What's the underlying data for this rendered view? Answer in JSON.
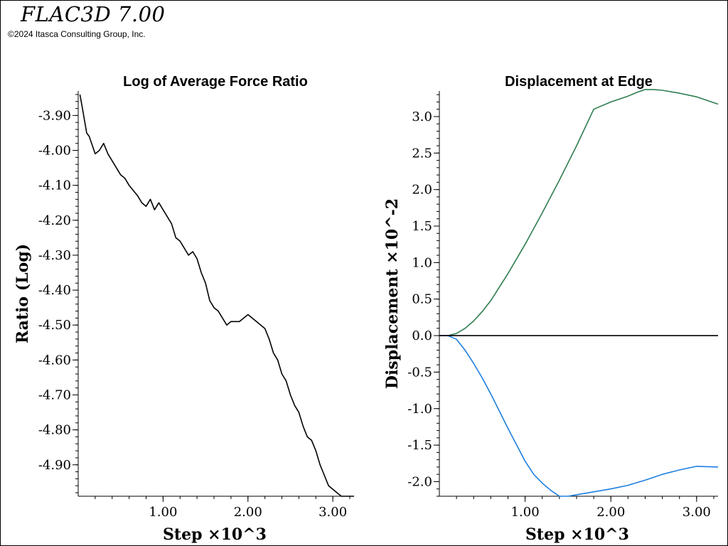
{
  "header": {
    "app_title": "FLAC3D 7.00",
    "copyright": "©2024 Itasca Consulting Group, Inc."
  },
  "chart_data": [
    {
      "type": "line",
      "title": "Log of Average Force Ratio",
      "xlabel": "Step ×10^3",
      "ylabel": "Ratio (Log)",
      "xlim": [
        0.0,
        3.25
      ],
      "ylim": [
        -4.99,
        -3.83
      ],
      "xticks": [
        1.0,
        2.0,
        3.0
      ],
      "xtick_labels": [
        "1.00",
        "2.00",
        "3.00"
      ],
      "yticks": [
        -3.9,
        -4.0,
        -4.1,
        -4.2,
        -4.3,
        -4.4,
        -4.5,
        -4.6,
        -4.7,
        -4.8,
        -4.9
      ],
      "ytick_labels": [
        "-3.90",
        "-4.00",
        "-4.10",
        "-4.20",
        "-4.30",
        "-4.40",
        "-4.50",
        "-4.60",
        "-4.70",
        "-4.80",
        "-4.90"
      ],
      "grid": false,
      "series": [
        {
          "color": "#000000",
          "x": [
            0.02,
            0.05,
            0.1,
            0.13,
            0.2,
            0.25,
            0.3,
            0.35,
            0.4,
            0.45,
            0.5,
            0.55,
            0.6,
            0.7,
            0.75,
            0.8,
            0.85,
            0.9,
            0.95,
            1.0,
            1.05,
            1.1,
            1.15,
            1.2,
            1.25,
            1.3,
            1.35,
            1.4,
            1.45,
            1.5,
            1.55,
            1.6,
            1.65,
            1.7,
            1.75,
            1.8,
            1.85,
            1.9,
            1.95,
            2.0,
            2.05,
            2.1,
            2.15,
            2.2,
            2.25,
            2.3,
            2.35,
            2.4,
            2.45,
            2.5,
            2.55,
            2.6,
            2.65,
            2.7,
            2.75,
            2.8,
            2.85,
            2.9,
            2.95,
            3.0,
            3.05,
            3.1,
            3.15,
            3.2,
            3.25
          ],
          "y": [
            -3.84,
            -3.88,
            -3.95,
            -3.96,
            -4.01,
            -4.0,
            -3.98,
            -4.01,
            -4.03,
            -4.05,
            -4.07,
            -4.08,
            -4.1,
            -4.13,
            -4.15,
            -4.16,
            -4.14,
            -4.17,
            -4.15,
            -4.17,
            -4.19,
            -4.21,
            -4.25,
            -4.26,
            -4.28,
            -4.3,
            -4.29,
            -4.31,
            -4.35,
            -4.38,
            -4.43,
            -4.45,
            -4.46,
            -4.48,
            -4.5,
            -4.49,
            -4.49,
            -4.49,
            -4.48,
            -4.47,
            -4.48,
            -4.49,
            -4.5,
            -4.51,
            -4.54,
            -4.58,
            -4.6,
            -4.64,
            -4.66,
            -4.7,
            -4.73,
            -4.75,
            -4.79,
            -4.82,
            -4.83,
            -4.86,
            -4.9,
            -4.93,
            -4.96,
            -4.97,
            -4.98,
            -4.99,
            -4.99,
            -4.99,
            -4.99
          ]
        }
      ]
    },
    {
      "type": "line",
      "title": "Displacement at Edge",
      "xlabel": "Step ×10^3",
      "ylabel": "Displacement ×10^-2",
      "xlim": [
        0.0,
        3.25
      ],
      "ylim": [
        -2.2,
        3.35
      ],
      "xticks": [
        1.0,
        2.0,
        3.0
      ],
      "xtick_labels": [
        "1.00",
        "2.00",
        "3.00"
      ],
      "yticks": [
        3.0,
        2.5,
        2.0,
        1.5,
        1.0,
        0.5,
        0.0,
        -0.5,
        -1.0,
        -1.5,
        -2.0
      ],
      "ytick_labels": [
        "3.0",
        "2.5",
        "2.0",
        "1.5",
        "1.0",
        "0.5",
        "0.0",
        "-0.5",
        "-1.0",
        "-1.5",
        "-2.0"
      ],
      "grid": false,
      "series": [
        {
          "color": "#2e7d4f",
          "x": [
            0.0,
            0.1,
            0.2,
            0.3,
            0.4,
            0.5,
            0.6,
            0.8,
            1.0,
            1.2,
            1.4,
            1.6,
            1.8,
            2.0,
            2.2,
            2.3,
            2.4,
            2.5,
            2.6,
            2.8,
            3.0,
            3.25
          ],
          "y": [
            0.0,
            0.0,
            0.03,
            0.1,
            0.2,
            0.33,
            0.48,
            0.85,
            1.25,
            1.68,
            2.13,
            2.6,
            3.1,
            3.2,
            3.28,
            3.33,
            3.37,
            3.37,
            3.36,
            3.32,
            3.27,
            3.17
          ]
        },
        {
          "color": "#1e7fe0",
          "x": [
            0.0,
            0.1,
            0.2,
            0.3,
            0.4,
            0.5,
            0.6,
            0.8,
            1.0,
            1.1,
            1.2,
            1.3,
            1.4,
            1.5,
            1.6,
            1.8,
            2.0,
            2.2,
            2.4,
            2.6,
            2.8,
            3.0,
            3.25
          ],
          "y": [
            0.0,
            0.0,
            -0.05,
            -0.2,
            -0.38,
            -0.58,
            -0.8,
            -1.27,
            -1.72,
            -1.9,
            -2.02,
            -2.12,
            -2.2,
            -2.2,
            -2.18,
            -2.14,
            -2.1,
            -2.05,
            -1.98,
            -1.9,
            -1.84,
            -1.79,
            -1.8
          ]
        },
        {
          "color": "#000000",
          "x": [
            0.0,
            3.25
          ],
          "y": [
            0.0,
            0.0
          ]
        }
      ]
    }
  ]
}
